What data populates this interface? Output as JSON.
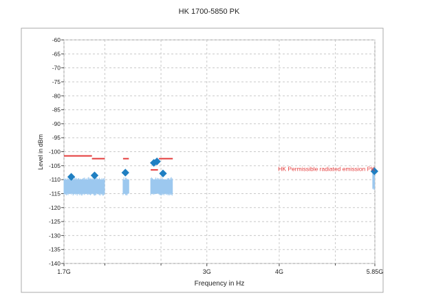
{
  "chart_data": {
    "type": "line",
    "title": "HK 1700-5850 PK",
    "xlabel": "Frequency in Hz",
    "ylabel": "Level in dBm",
    "x_scale": "log",
    "xlim": [
      1700000000,
      5850000000
    ],
    "ylim": [
      -140,
      -60
    ],
    "x_ticks": [
      {
        "value": 1700000000,
        "label": "1.7G"
      },
      {
        "value": 3000000000,
        "label": "3G"
      },
      {
        "value": 4000000000,
        "label": "4G"
      },
      {
        "value": 5850000000,
        "label": "5.85G"
      }
    ],
    "x_minor_ticks": [
      2000000000,
      2500000000,
      5000000000
    ],
    "y_ticks": [
      -140,
      -135,
      -130,
      -125,
      -120,
      -115,
      -110,
      -105,
      -100,
      -95,
      -90,
      -85,
      -80,
      -75,
      -70,
      -65,
      -60
    ],
    "grid": true,
    "colors": {
      "trace": "#9cc8ef",
      "limit": "#e43a3a",
      "marker": "#1f7fc2",
      "grid": "#c8c8c8",
      "frame": "#a9a9a9"
    },
    "series": [
      {
        "kind": "trace-band",
        "segments": [
          {
            "x_start": 1700000000,
            "x_end": 2000000000,
            "y_low": -115,
            "y_high": -110
          },
          {
            "x_start": 2150000000,
            "x_end": 2200000000,
            "y_low": -115,
            "y_high": -110
          },
          {
            "x_start": 2400000000,
            "x_end": 2620000000,
            "y_low": -115,
            "y_high": -110
          },
          {
            "x_start": 5800000000,
            "x_end": 5850000000,
            "y_low": -113,
            "y_high": -108
          }
        ]
      },
      {
        "kind": "limit-line",
        "name": "HK Permissible radiated emission PK",
        "segments": [
          {
            "x_start": 1700000000,
            "x_end": 1900000000,
            "y": -101.5
          },
          {
            "x_start": 1900000000,
            "x_end": 2000000000,
            "y": -102.5
          },
          {
            "x_start": 2150000000,
            "x_end": 2200000000,
            "y": -102.5
          },
          {
            "x_start": 2400000000,
            "x_end": 2470000000,
            "y": -106.5
          },
          {
            "x_start": 2480000000,
            "x_end": 2620000000,
            "y": -102.5
          },
          {
            "x_start": 5800000000,
            "x_end": 5850000000,
            "y": -106.5
          }
        ]
      },
      {
        "kind": "markers",
        "points": [
          {
            "x": 1750000000,
            "y": -109
          },
          {
            "x": 1920000000,
            "y": -108.5
          },
          {
            "x": 2170000000,
            "y": -107.5
          },
          {
            "x": 2430000000,
            "y": -104
          },
          {
            "x": 2460000000,
            "y": -103.5
          },
          {
            "x": 2520000000,
            "y": -107.8
          },
          {
            "x": 5840000000,
            "y": -107
          }
        ]
      }
    ]
  }
}
